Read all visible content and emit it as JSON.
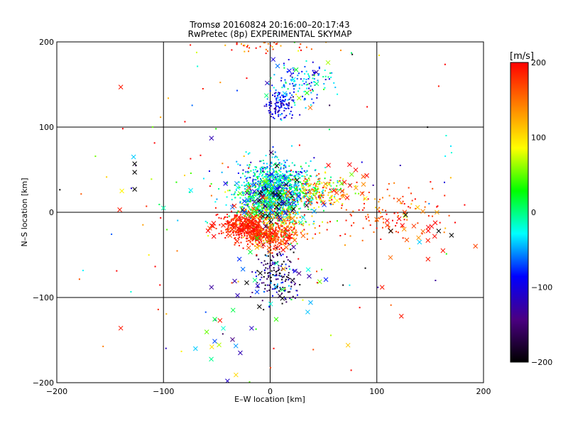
{
  "chart_data": {
    "type": "scatter",
    "title": "Tromsø 20160824 20:16:00–20:17:43",
    "subtitle": "RwPretec (8p) EXPERIMENTAL SKYMAP",
    "xlabel": "E–W location [km]",
    "ylabel": "N–S location [km]",
    "xlim": [
      -200,
      200
    ],
    "ylim": [
      -200,
      200
    ],
    "xticks": [
      -200,
      -100,
      0,
      100,
      200
    ],
    "yticks": [
      -200,
      -100,
      0,
      100,
      200
    ],
    "x_tick_labels": [
      "−200",
      "−100",
      "0",
      "100",
      "200"
    ],
    "y_tick_labels": [
      "−200",
      "−100",
      "0",
      "100",
      "200"
    ],
    "grid": true,
    "colorbar": {
      "label": "[m/s]",
      "range": [
        -200,
        200
      ],
      "ticks": [
        200,
        100,
        0,
        -100,
        -200
      ],
      "tick_labels": [
        "200",
        "100",
        "0",
        "−100",
        "−200"
      ],
      "stops": [
        "#000000",
        "#4b0082",
        "#0000ff",
        "#00ffff",
        "#00ff00",
        "#ffff00",
        "#ff8000",
        "#ff0000"
      ]
    },
    "marker_types": [
      "x",
      "dot"
    ],
    "clusters": [
      {
        "x": 5,
        "y": 28,
        "sx": 16,
        "sy": 16,
        "n": 950,
        "marker": "dot",
        "v_mean": -30,
        "v_sd": 40
      },
      {
        "x": 0,
        "y": 10,
        "sx": 14,
        "sy": 12,
        "n": 300,
        "marker": "dot",
        "v_mean": 10,
        "v_sd": 45
      },
      {
        "x": -25,
        "y": -17,
        "sx": 11,
        "sy": 7,
        "n": 320,
        "marker": "dot",
        "v_mean": 185,
        "v_sd": 15
      },
      {
        "x": 0,
        "y": -28,
        "sx": 12,
        "sy": 7,
        "n": 300,
        "marker": "dot",
        "v_mean": 180,
        "v_sd": 20
      },
      {
        "x": 10,
        "y": 125,
        "sx": 7,
        "sy": 8,
        "n": 130,
        "marker": "dot",
        "v_mean": -90,
        "v_sd": 25
      },
      {
        "x": 30,
        "y": 155,
        "sx": 12,
        "sy": 10,
        "n": 120,
        "marker": "dot",
        "v_mean": -60,
        "v_sd": 40
      },
      {
        "x": 0,
        "y": 195,
        "sx": 25,
        "sy": 4,
        "n": 40,
        "marker": "dot",
        "v_mean": 160,
        "v_sd": 40
      },
      {
        "x": 45,
        "y": 25,
        "sx": 15,
        "sy": 10,
        "n": 180,
        "marker": "dot",
        "v_mean": 90,
        "v_sd": 70
      },
      {
        "x": 105,
        "y": 0,
        "sx": 30,
        "sy": 15,
        "n": 110,
        "marker": "dot",
        "v_mean": 180,
        "v_sd": 30
      },
      {
        "x": 5,
        "y": -75,
        "sx": 9,
        "sy": 18,
        "n": 170,
        "marker": "dot",
        "v_mean": -150,
        "v_sd": 50
      },
      {
        "x": 10,
        "y": -10,
        "sx": 18,
        "sy": 12,
        "n": 200,
        "marker": "dot",
        "v_mean": 120,
        "v_sd": 50
      },
      {
        "x": 0,
        "y": 0,
        "sx": 95,
        "sy": 95,
        "n": 140,
        "marker": "dot",
        "v_mean": 60,
        "v_sd": 130
      },
      {
        "x": 0,
        "y": 15,
        "sx": 18,
        "sy": 15,
        "n": 110,
        "marker": "x",
        "v_mean": -60,
        "v_sd": 100
      },
      {
        "x": -25,
        "y": -17,
        "sx": 12,
        "sy": 8,
        "n": 45,
        "marker": "x",
        "v_mean": 185,
        "v_sd": 15
      },
      {
        "x": 0,
        "y": -30,
        "sx": 13,
        "sy": 8,
        "n": 45,
        "marker": "x",
        "v_mean": 170,
        "v_sd": 25
      },
      {
        "x": 65,
        "y": 30,
        "sx": 15,
        "sy": 15,
        "n": 25,
        "marker": "x",
        "v_mean": 150,
        "v_sd": 60
      },
      {
        "x": 130,
        "y": -15,
        "sx": 20,
        "sy": 15,
        "n": 25,
        "marker": "x",
        "v_mean": 170,
        "v_sd": 50
      },
      {
        "x": 0,
        "y": -80,
        "sx": 25,
        "sy": 25,
        "n": 30,
        "marker": "x",
        "v_mean": -80,
        "v_sd": 100
      },
      {
        "x": 25,
        "y": 150,
        "sx": 20,
        "sy": 15,
        "n": 14,
        "marker": "x",
        "v_mean": -60,
        "v_sd": 80
      },
      {
        "x": -40,
        "y": -150,
        "sx": 20,
        "sy": 25,
        "n": 14,
        "marker": "x",
        "v_mean": 0,
        "v_sd": 100
      }
    ],
    "points": [
      {
        "x": -140,
        "y": 147,
        "v": 190,
        "marker": "x"
      },
      {
        "x": -140,
        "y": -136,
        "v": 190,
        "marker": "x"
      },
      {
        "x": -127,
        "y": 57,
        "v": -200,
        "marker": "x"
      },
      {
        "x": -127,
        "y": 47,
        "v": -200,
        "marker": "x"
      },
      {
        "x": -127,
        "y": 27,
        "v": -200,
        "marker": "x"
      },
      {
        "x": -128,
        "y": 65,
        "v": -40,
        "marker": "x"
      },
      {
        "x": -139,
        "y": 25,
        "v": 90,
        "marker": "x"
      },
      {
        "x": -141,
        "y": 3,
        "v": 190,
        "marker": "x"
      },
      {
        "x": -100,
        "y": 5,
        "v": -10,
        "marker": "x"
      },
      {
        "x": -63,
        "y": 145,
        "v": 190,
        "marker": "dot"
      },
      {
        "x": 158,
        "y": 148,
        "v": 190,
        "marker": "dot"
      },
      {
        "x": 123,
        "y": -122,
        "v": 190,
        "marker": "x"
      },
      {
        "x": 73,
        "y": -156,
        "v": 110,
        "marker": "x"
      },
      {
        "x": -70,
        "y": -160,
        "v": -40,
        "marker": "x"
      },
      {
        "x": -47,
        "y": -127,
        "v": 190,
        "marker": "x"
      },
      {
        "x": -28,
        "y": -165,
        "v": -120,
        "marker": "x"
      },
      {
        "x": -55,
        "y": -88,
        "v": -130,
        "marker": "x"
      },
      {
        "x": 155,
        "y": -80,
        "v": -130,
        "marker": "dot"
      },
      {
        "x": 170,
        "y": -27,
        "v": -200,
        "marker": "x"
      },
      {
        "x": 158,
        "y": -22,
        "v": -200,
        "marker": "x"
      },
      {
        "x": 140,
        "y": -35,
        "v": -40,
        "marker": "x"
      },
      {
        "x": 165,
        "y": 90,
        "v": -20,
        "marker": "dot"
      },
      {
        "x": 170,
        "y": 70,
        "v": -20,
        "marker": "dot"
      },
      {
        "x": 122,
        "y": 55,
        "v": -120,
        "marker": "dot"
      },
      {
        "x": -55,
        "y": 87,
        "v": -120,
        "marker": "x"
      },
      {
        "x": -40,
        "y": -198,
        "v": -110,
        "marker": "x"
      },
      {
        "x": 105,
        "y": -88,
        "v": 190,
        "marker": "x"
      },
      {
        "x": 148,
        "y": -55,
        "v": 190,
        "marker": "x"
      },
      {
        "x": 162,
        "y": -45,
        "v": 190,
        "marker": "x"
      },
      {
        "x": 113,
        "y": -22,
        "v": -200,
        "marker": "x"
      },
      {
        "x": 127,
        "y": -3,
        "v": -200,
        "marker": "x"
      }
    ]
  }
}
